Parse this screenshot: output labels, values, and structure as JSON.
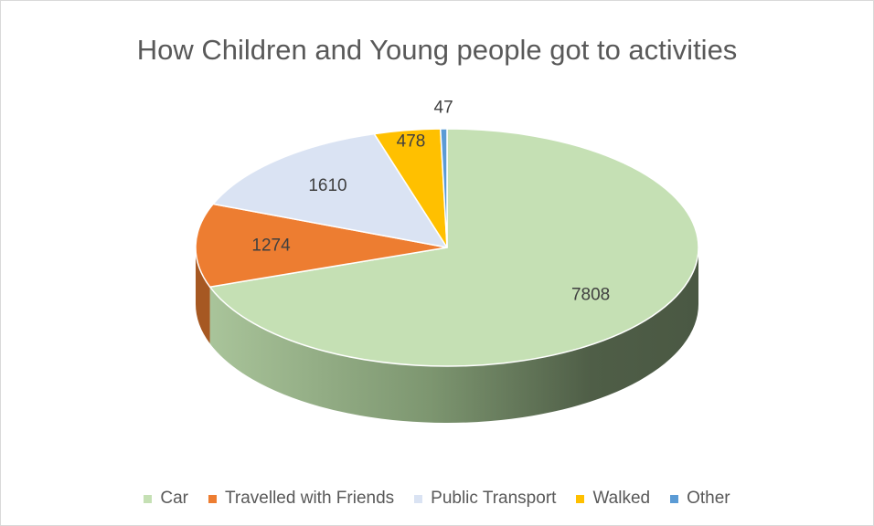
{
  "chart_data": {
    "type": "pie",
    "title": "How Children and Young people got to activities",
    "categories": [
      "Car",
      "Travelled with Friends",
      "Public Transport",
      "Walked",
      "Other"
    ],
    "values": [
      7808,
      1274,
      1610,
      478,
      47
    ],
    "colors": [
      "#c5e0b4",
      "#ed7d31",
      "#dae3f3",
      "#ffc000",
      "#5b9bd5"
    ],
    "data_labels": [
      "7808",
      "1274",
      "1610",
      "478",
      "47"
    ],
    "style": "3d",
    "legend_position": "bottom"
  }
}
